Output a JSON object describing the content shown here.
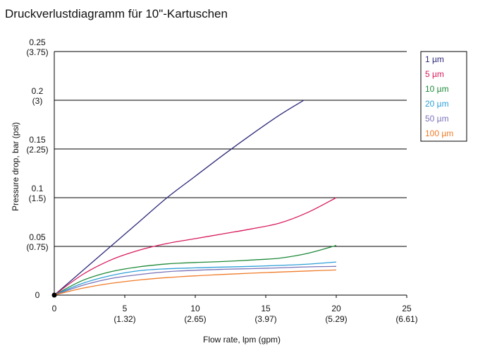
{
  "title": "Druckverlustdiagramm für 10\"-Kartuschen",
  "chart_data": {
    "type": "line",
    "title": "Druckverlustdiagramm für 10\"-Kartuschen",
    "xlabel": "Flow rate, lpm (gpm)",
    "ylabel": "Pressure drop, bar (psi)",
    "xlim": [
      0,
      25
    ],
    "ylim": [
      0,
      0.25
    ],
    "grid": "horizontal",
    "legend_position": "right",
    "x_ticks": [
      {
        "value": 0,
        "label": "0",
        "sublabel": ""
      },
      {
        "value": 5,
        "label": "5",
        "sublabel": "(1.32)"
      },
      {
        "value": 10,
        "label": "10",
        "sublabel": "(2.65)"
      },
      {
        "value": 15,
        "label": "15",
        "sublabel": "(3.97)"
      },
      {
        "value": 20,
        "label": "20",
        "sublabel": "(5.29)"
      },
      {
        "value": 25,
        "label": "25",
        "sublabel": "(6.61)"
      }
    ],
    "y_ticks": [
      {
        "value": 0,
        "label": "0",
        "sublabel": ""
      },
      {
        "value": 0.05,
        "label": "0.05",
        "sublabel": "(0.75)"
      },
      {
        "value": 0.1,
        "label": "0.1",
        "sublabel": "(1.5)"
      },
      {
        "value": 0.15,
        "label": "0.15",
        "sublabel": "(2.25)"
      },
      {
        "value": 0.2,
        "label": "0.2",
        "sublabel": "(3)"
      },
      {
        "value": 0.25,
        "label": "0.25",
        "sublabel": "(3.75)"
      }
    ],
    "series": [
      {
        "name": "1 µm",
        "color": "#2e2a7a",
        "points": [
          [
            0,
            0
          ],
          [
            2,
            0.025
          ],
          [
            4,
            0.05
          ],
          [
            6,
            0.075
          ],
          [
            8,
            0.1
          ],
          [
            10,
            0.122
          ],
          [
            12,
            0.144
          ],
          [
            14,
            0.165
          ],
          [
            16,
            0.185
          ],
          [
            17.7,
            0.2
          ]
        ]
      },
      {
        "name": "5 µm",
        "color": "#d81b5e",
        "points": [
          [
            0,
            0
          ],
          [
            2,
            0.021
          ],
          [
            4,
            0.036
          ],
          [
            6,
            0.046
          ],
          [
            8,
            0.053
          ],
          [
            10,
            0.058
          ],
          [
            12,
            0.063
          ],
          [
            14,
            0.068
          ],
          [
            16,
            0.074
          ],
          [
            18,
            0.085
          ],
          [
            20,
            0.1
          ]
        ]
      },
      {
        "name": "10 µm",
        "color": "#1f8a3a",
        "points": [
          [
            0,
            0
          ],
          [
            2,
            0.015
          ],
          [
            4,
            0.024
          ],
          [
            6,
            0.029
          ],
          [
            8,
            0.032
          ],
          [
            10,
            0.0335
          ],
          [
            12,
            0.0345
          ],
          [
            14,
            0.036
          ],
          [
            16,
            0.038
          ],
          [
            18,
            0.043
          ],
          [
            20,
            0.051
          ]
        ]
      },
      {
        "name": "20 µm",
        "color": "#2e9fd8",
        "points": [
          [
            0,
            0
          ],
          [
            2,
            0.012
          ],
          [
            4,
            0.02
          ],
          [
            6,
            0.025
          ],
          [
            8,
            0.027
          ],
          [
            10,
            0.028
          ],
          [
            12,
            0.0288
          ],
          [
            14,
            0.0295
          ],
          [
            16,
            0.0305
          ],
          [
            18,
            0.0318
          ],
          [
            20,
            0.034
          ]
        ]
      },
      {
        "name": "50 µm",
        "color": "#7a72b8",
        "points": [
          [
            0,
            0
          ],
          [
            2,
            0.01
          ],
          [
            4,
            0.017
          ],
          [
            6,
            0.021
          ],
          [
            8,
            0.024
          ],
          [
            10,
            0.0255
          ],
          [
            12,
            0.0265
          ],
          [
            14,
            0.0272
          ],
          [
            16,
            0.028
          ],
          [
            18,
            0.029
          ],
          [
            20,
            0.0295
          ]
        ]
      },
      {
        "name": "100 µm",
        "color": "#f07c2a",
        "points": [
          [
            0,
            0
          ],
          [
            2,
            0.007
          ],
          [
            4,
            0.012
          ],
          [
            6,
            0.0155
          ],
          [
            8,
            0.018
          ],
          [
            10,
            0.0198
          ],
          [
            12,
            0.0212
          ],
          [
            14,
            0.0225
          ],
          [
            16,
            0.0237
          ],
          [
            18,
            0.0248
          ],
          [
            20,
            0.0258
          ]
        ]
      }
    ]
  }
}
